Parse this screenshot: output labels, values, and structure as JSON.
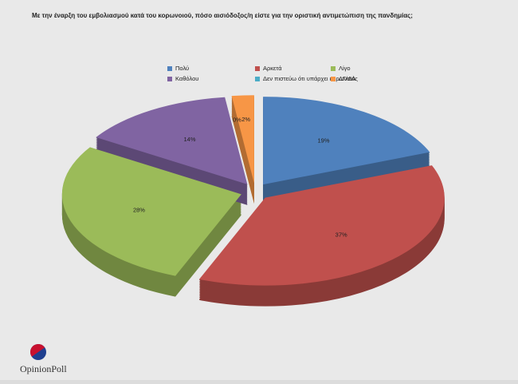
{
  "chart_data": {
    "type": "pie",
    "title": "Με την έναρξη του εμβολιασμού κατά του κορωνοιού, πόσο αισιόδοξος/η είστε για την οριστική αντιμετώπιση της πανδημίας;",
    "categories": [
      "Πολύ",
      "Αρκετά",
      "Λίγο",
      "Καθόλου",
      "Δεν πιστεύω ότι υπάρχει κορωνοϊός",
      "ΔΓ/ΔΑ"
    ],
    "values": [
      19,
      37,
      28,
      14,
      0,
      2
    ],
    "value_labels": [
      "19%",
      "37%",
      "28%",
      "14%",
      "0%",
      "2%"
    ],
    "colors": [
      "#4f81bd",
      "#c0504d",
      "#9bbb59",
      "#8064a2",
      "#4bacc6",
      "#f79646"
    ]
  },
  "logo": "OpinionPoll"
}
